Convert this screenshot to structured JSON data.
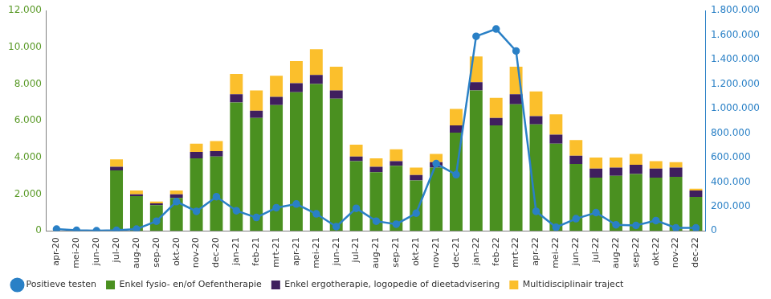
{
  "chart_data": {
    "type": "bar",
    "stacked": true,
    "grid": false,
    "legend": "bottom",
    "categories": [
      "apr-20",
      "mei-20",
      "jun-20",
      "jul-20",
      "aug-20",
      "sep-20",
      "okt-20",
      "nov-20",
      "dec-20",
      "jan-21",
      "feb-21",
      "mrt-21",
      "apr-21",
      "mei-21",
      "jun-21",
      "jul-21",
      "aug-21",
      "sep-21",
      "okt-21",
      "nov-21",
      "dec-21",
      "jan-22",
      "feb-22",
      "mrt-22",
      "apr-22",
      "mei-22",
      "jun-22",
      "jul-22",
      "aug-22",
      "sep-22",
      "okt-22",
      "nov-22",
      "dec-22"
    ],
    "ylim": [
      0,
      12000
    ],
    "yticks": [
      0,
      {
        "value": 2000,
        "label": "2.000"
      },
      {
        "value": 4000,
        "label": "4.000"
      },
      {
        "value": 6000,
        "label": "6.000"
      },
      {
        "value": 8000,
        "label": "8.000"
      },
      {
        "value": 10000,
        "label": "10.000"
      },
      {
        "value": 12000,
        "label": "12.000"
      }
    ],
    "y2lim": [
      0,
      1800000
    ],
    "y2ticks": [
      0,
      {
        "value": 200000,
        "label": "200.000"
      },
      {
        "value": 400000,
        "label": "400.000"
      },
      {
        "value": 600000,
        "label": "600.000"
      },
      {
        "value": 800000,
        "label": "800.000"
      },
      {
        "value": 1000000,
        "label": "1.000.000"
      },
      {
        "value": 1200000,
        "label": "1.200.000"
      },
      {
        "value": 1400000,
        "label": "1.400.000"
      },
      {
        "value": 1600000,
        "label": "1.600.000"
      },
      {
        "value": 1800000,
        "label": "1.800.000"
      }
    ],
    "series": [
      {
        "name": "Enkel fysio- en/of Oefentherapie",
        "type": "bar",
        "color": "#4a9020",
        "values": [
          0,
          0,
          0,
          3300,
          1900,
          1400,
          1800,
          3950,
          4050,
          7000,
          6150,
          6850,
          7550,
          8000,
          7200,
          3800,
          3200,
          3550,
          2750,
          3450,
          5350,
          7650,
          5750,
          6900,
          5800,
          4750,
          3650,
          2900,
          3000,
          3100,
          2900,
          2950,
          1850
        ]
      },
      {
        "name": "Enkel ergotherapie, logopedie of dieetadvisering",
        "type": "bar",
        "color": "#3f1f5e",
        "values": [
          0,
          0,
          0,
          200,
          100,
          100,
          200,
          350,
          300,
          450,
          400,
          450,
          500,
          500,
          450,
          250,
          300,
          250,
          300,
          300,
          400,
          450,
          400,
          550,
          450,
          500,
          450,
          500,
          450,
          500,
          500,
          500,
          350
        ]
      },
      {
        "name": "Multidisciplinair traject",
        "type": "bar",
        "color": "#fbbf2c",
        "values": [
          0,
          0,
          0,
          400,
          200,
          100,
          200,
          450,
          550,
          1100,
          1100,
          1150,
          1200,
          1400,
          1300,
          650,
          450,
          650,
          400,
          450,
          900,
          1400,
          1100,
          1500,
          1350,
          1100,
          850,
          600,
          550,
          600,
          400,
          300,
          100
        ]
      },
      {
        "name": "Positieve testen",
        "type": "line",
        "axis": "y2",
        "color": "#2a80c6",
        "marker": "circle",
        "line_style": "solid",
        "values": [
          15000,
          5000,
          2000,
          5000,
          15000,
          80000,
          240000,
          160000,
          280000,
          165000,
          110000,
          190000,
          220000,
          140000,
          35000,
          185000,
          80000,
          55000,
          145000,
          550000,
          460000,
          1590000,
          1650000,
          1470000,
          160000,
          30000,
          100000,
          150000,
          50000,
          45000,
          85000,
          25000,
          25000
        ]
      }
    ]
  }
}
